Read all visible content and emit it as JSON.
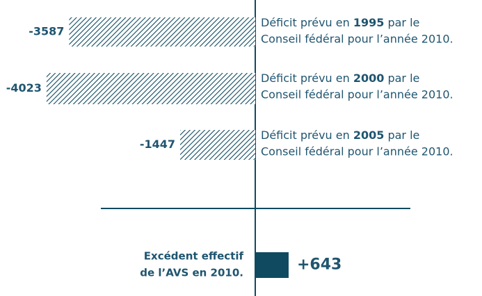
{
  "chart_data": {
    "type": "bar",
    "values": [
      -3587,
      -4023,
      -1447,
      643
    ],
    "value_labels": [
      "-3587",
      "-4023",
      "-1447",
      "+643"
    ],
    "labels": [
      {
        "before": "Déficit prévu en ",
        "bold": "1995",
        "after": " par le",
        "line2": "Conseil fédéral pour l’année 2010."
      },
      {
        "before": "Déficit prévu en ",
        "bold": "2000",
        "after": " par le",
        "line2": "Conseil fédéral pour l’année 2010."
      },
      {
        "before": "Déficit prévu en ",
        "bold": "2005",
        "after": " par le",
        "line2": "Conseil fédéral pour l’année 2010."
      },
      {
        "line1": "Excédent effectif",
        "line2": "de l’AVS en 2010."
      }
    ],
    "color": "#0f4a60"
  }
}
